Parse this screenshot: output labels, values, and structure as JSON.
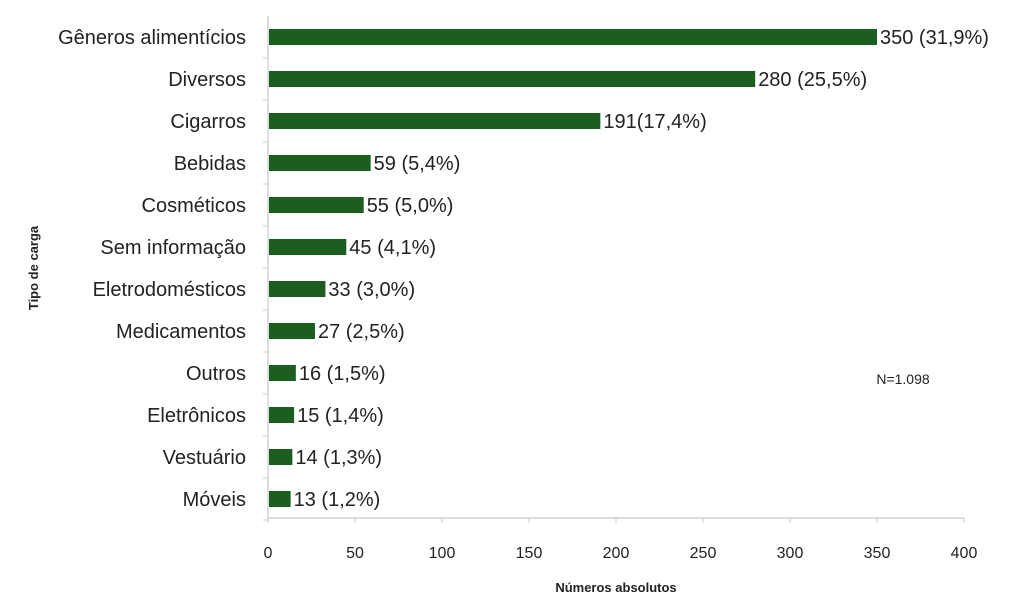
{
  "chart_data": {
    "type": "bar",
    "orientation": "horizontal",
    "categories": [
      "Gêneros alimentícios",
      "Diversos",
      "Cigarros",
      "Bebidas",
      "Cosméticos",
      "Sem informação",
      "Eletrodomésticos",
      "Medicamentos",
      "Outros",
      "Eletrônicos",
      "Vestuário",
      "Móveis"
    ],
    "values": [
      350,
      280,
      191,
      59,
      55,
      45,
      33,
      27,
      16,
      15,
      14,
      13
    ],
    "value_labels": [
      "350 (31,9%)",
      "280 (25,5%)",
      "191(17,4%)",
      "59 (5,4%)",
      "55 (5,0%)",
      "45 (4,1%)",
      "33 (3,0%)",
      "27 (2,5%)",
      "16 (1,5%)",
      "15 (1,4%)",
      "14 (1,3%)",
      "13 (1,2%)"
    ],
    "xlabel": "Números absolutos",
    "ylabel": "Tipo de carga",
    "xlim": [
      0,
      400
    ],
    "xticks": [
      0,
      50,
      100,
      150,
      200,
      250,
      300,
      350,
      400
    ],
    "xtick_labels": [
      "0",
      "50",
      "100",
      "150",
      "200",
      "250",
      "300",
      "350",
      "400"
    ],
    "annotation": "N=1.098",
    "grid": false,
    "bar_color": "#1b5e20"
  }
}
